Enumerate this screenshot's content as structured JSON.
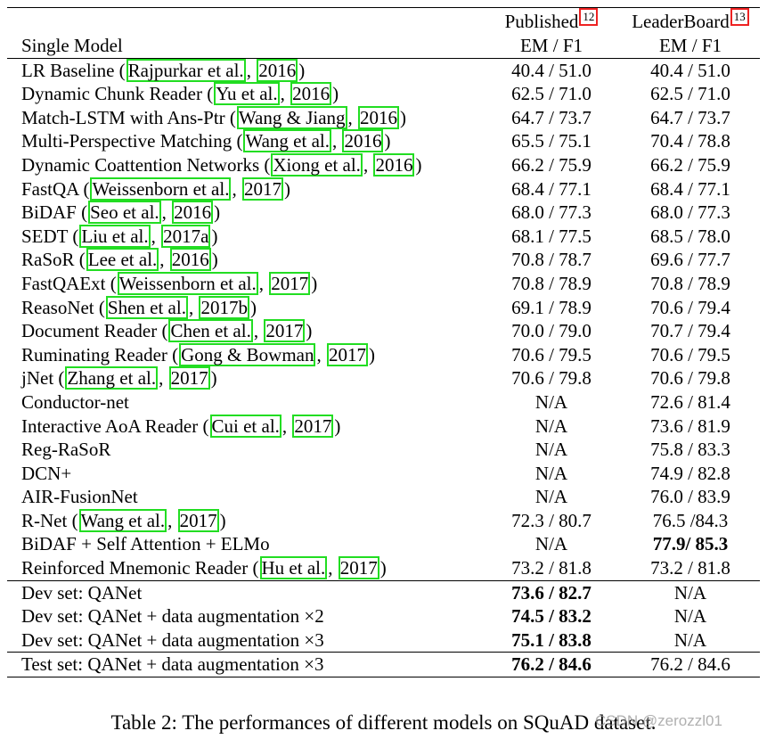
{
  "table": {
    "header": {
      "published": "Published",
      "published_fn": "12",
      "leaderboard": "LeaderBoard",
      "leaderboard_fn": "13",
      "single_model": "Single Model",
      "metric_pub": "EM / F1",
      "metric_lb": "EM / F1"
    },
    "rows": [
      {
        "model": "LR Baseline",
        "author": "Rajpurkar et al.",
        "year": "2016",
        "published": "40.4 / 51.0",
        "leaderboard": "40.4 / 51.0"
      },
      {
        "model": "Dynamic Chunk Reader",
        "author": "Yu et al.",
        "year": "2016",
        "published": "62.5 / 71.0",
        "leaderboard": "62.5 / 71.0"
      },
      {
        "model": "Match-LSTM with Ans-Ptr",
        "author": "Wang & Jiang",
        "year": "2016",
        "published": "64.7 / 73.7",
        "leaderboard": "64.7 / 73.7"
      },
      {
        "model": "Multi-Perspective Matching",
        "author": "Wang et al.",
        "year": "2016",
        "published": "65.5 / 75.1",
        "leaderboard": "70.4 / 78.8"
      },
      {
        "model": "Dynamic Coattention Networks",
        "author": "Xiong et al.",
        "year": "2016",
        "published": "66.2 / 75.9",
        "leaderboard": "66.2 / 75.9"
      },
      {
        "model": "FastQA",
        "author": "Weissenborn et al.",
        "year": "2017",
        "published": "68.4 / 77.1",
        "leaderboard": "68.4 / 77.1"
      },
      {
        "model": "BiDAF",
        "author": "Seo et al.",
        "year": "2016",
        "published": "68.0 / 77.3",
        "leaderboard": "68.0 / 77.3"
      },
      {
        "model": "SEDT",
        "author": "Liu et al.",
        "year": "2017a",
        "published": "68.1 / 77.5",
        "leaderboard": "68.5 / 78.0"
      },
      {
        "model": "RaSoR",
        "author": "Lee et al.",
        "year": "2016",
        "published": "70.8 / 78.7",
        "leaderboard": "69.6 / 77.7"
      },
      {
        "model": "FastQAExt",
        "author": "Weissenborn et al.",
        "year": "2017",
        "published": "70.8 / 78.9",
        "leaderboard": "70.8 / 78.9"
      },
      {
        "model": "ReasoNet",
        "author": "Shen et al.",
        "year": "2017b",
        "published": "69.1 / 78.9",
        "leaderboard": "70.6 / 79.4"
      },
      {
        "model": "Document Reader",
        "author": "Chen et al.",
        "year": "2017",
        "published": "70.0 / 79.0",
        "leaderboard": "70.7 / 79.4"
      },
      {
        "model": "Ruminating Reader",
        "author": "Gong & Bowman",
        "year": "2017",
        "published": "70.6 / 79.5",
        "leaderboard": "70.6 / 79.5"
      },
      {
        "model": "jNet",
        "author": "Zhang et al.",
        "year": "2017",
        "published": "70.6 / 79.8",
        "leaderboard": "70.6 / 79.8"
      },
      {
        "model": "Conductor-net",
        "published": "N/A",
        "leaderboard": "72.6 / 81.4"
      },
      {
        "model": "Interactive AoA Reader",
        "author": "Cui et al.",
        "year": "2017",
        "published": "N/A",
        "leaderboard": "73.6 / 81.9"
      },
      {
        "model": "Reg-RaSoR",
        "published": "N/A",
        "leaderboard": "75.8 / 83.3"
      },
      {
        "model": "DCN+",
        "published": "N/A",
        "leaderboard": "74.9 / 82.8"
      },
      {
        "model": "AIR-FusionNet",
        "published": "N/A",
        "leaderboard": "76.0 / 83.9"
      },
      {
        "model": "R-Net",
        "author": "Wang et al.",
        "year": "2017",
        "published": "72.3 / 80.7",
        "leaderboard": "76.5 /84.3"
      },
      {
        "model": "BiDAF + Self Attention + ELMo",
        "published": "N/A",
        "leaderboard": "77.9/ 85.3",
        "bold_lb": true
      },
      {
        "model": "Reinforced Mnemonic Reader",
        "author": "Hu et al.",
        "year": "2017",
        "published": "73.2 / 81.8",
        "leaderboard": "73.2 / 81.8"
      }
    ],
    "dev_rows": [
      {
        "model": "Dev set: QANet",
        "published": "73.6 / 82.7",
        "leaderboard": "N/A",
        "bold_pub": true
      },
      {
        "model": "Dev set: QANet + data augmentation ×2",
        "published": "74.5 / 83.2",
        "leaderboard": "N/A",
        "bold_pub": true
      },
      {
        "model": "Dev set: QANet + data augmentation ×3",
        "published": "75.1 / 83.8",
        "leaderboard": "N/A",
        "bold_pub": true
      }
    ],
    "test_row": {
      "model": "Test set: QANet + data augmentation ×3",
      "published": "76.2 / 84.6",
      "leaderboard": "76.2 / 84.6",
      "bold_pub": true
    }
  },
  "caption": "Table 2: The performances of different models on SQuAD dataset.",
  "watermark": "CSDN @zerozzl01",
  "colors": {
    "citation_box": "#22dd22",
    "footnote_box": "#ee2222"
  }
}
